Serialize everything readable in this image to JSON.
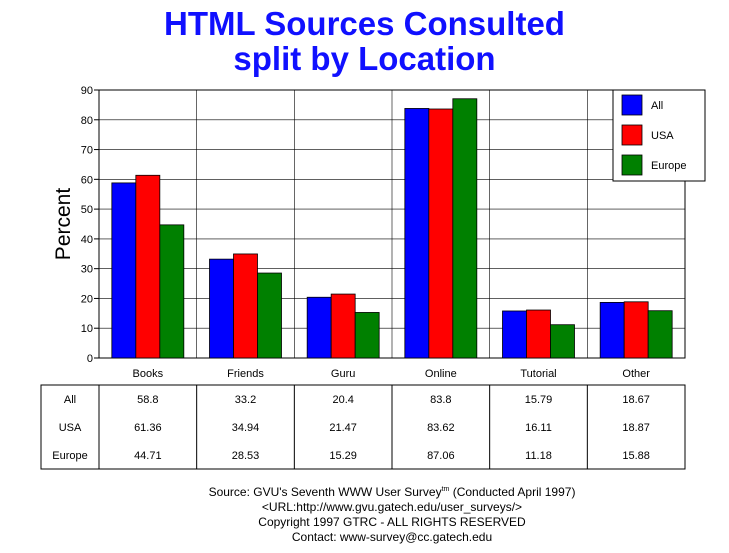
{
  "title_line1": "HTML Sources Consulted",
  "title_line2": "split by Location",
  "colors": {
    "All": "#0000ff",
    "USA": "#ff0000",
    "Europe": "#008000",
    "title": "#1010ff"
  },
  "chart_data": {
    "type": "bar",
    "title": "HTML Sources Consulted split by Location",
    "xlabel": "",
    "ylabel": "Percent",
    "ylim": [
      0,
      90
    ],
    "yticks": [
      0,
      10,
      20,
      30,
      40,
      50,
      60,
      70,
      80,
      90
    ],
    "grid": true,
    "legend_position": "top-right",
    "categories": [
      "Books",
      "Friends",
      "Guru",
      "Online",
      "Tutorial",
      "Other"
    ],
    "series": [
      {
        "name": "All",
        "values": [
          58.8,
          33.2,
          20.4,
          83.8,
          15.79,
          18.67
        ],
        "labels": [
          "58.8",
          "33.2",
          "20.4",
          "83.8",
          "15.79",
          "18.67"
        ]
      },
      {
        "name": "USA",
        "values": [
          61.36,
          34.94,
          21.47,
          83.62,
          16.11,
          18.87
        ],
        "labels": [
          "61.36",
          "34.94",
          "21.47",
          "83.62",
          "16.11",
          "18.87"
        ]
      },
      {
        "name": "Europe",
        "values": [
          44.71,
          28.53,
          15.29,
          87.06,
          11.18,
          15.88
        ],
        "labels": [
          "44.71",
          "28.53",
          "15.29",
          "87.06",
          "11.18",
          "15.88"
        ]
      }
    ]
  },
  "footer": {
    "source_prefix": "Source: GVU's Seventh WWW User Survey",
    "source_tm": "tm",
    "source_suffix": " (Conducted April 1997)",
    "url": "<URL:http://www.gvu.gatech.edu/user_surveys/>",
    "copyright": "Copyright 1997 GTRC - ALL RIGHTS RESERVED",
    "contact": "Contact: www-survey@cc.gatech.edu"
  }
}
